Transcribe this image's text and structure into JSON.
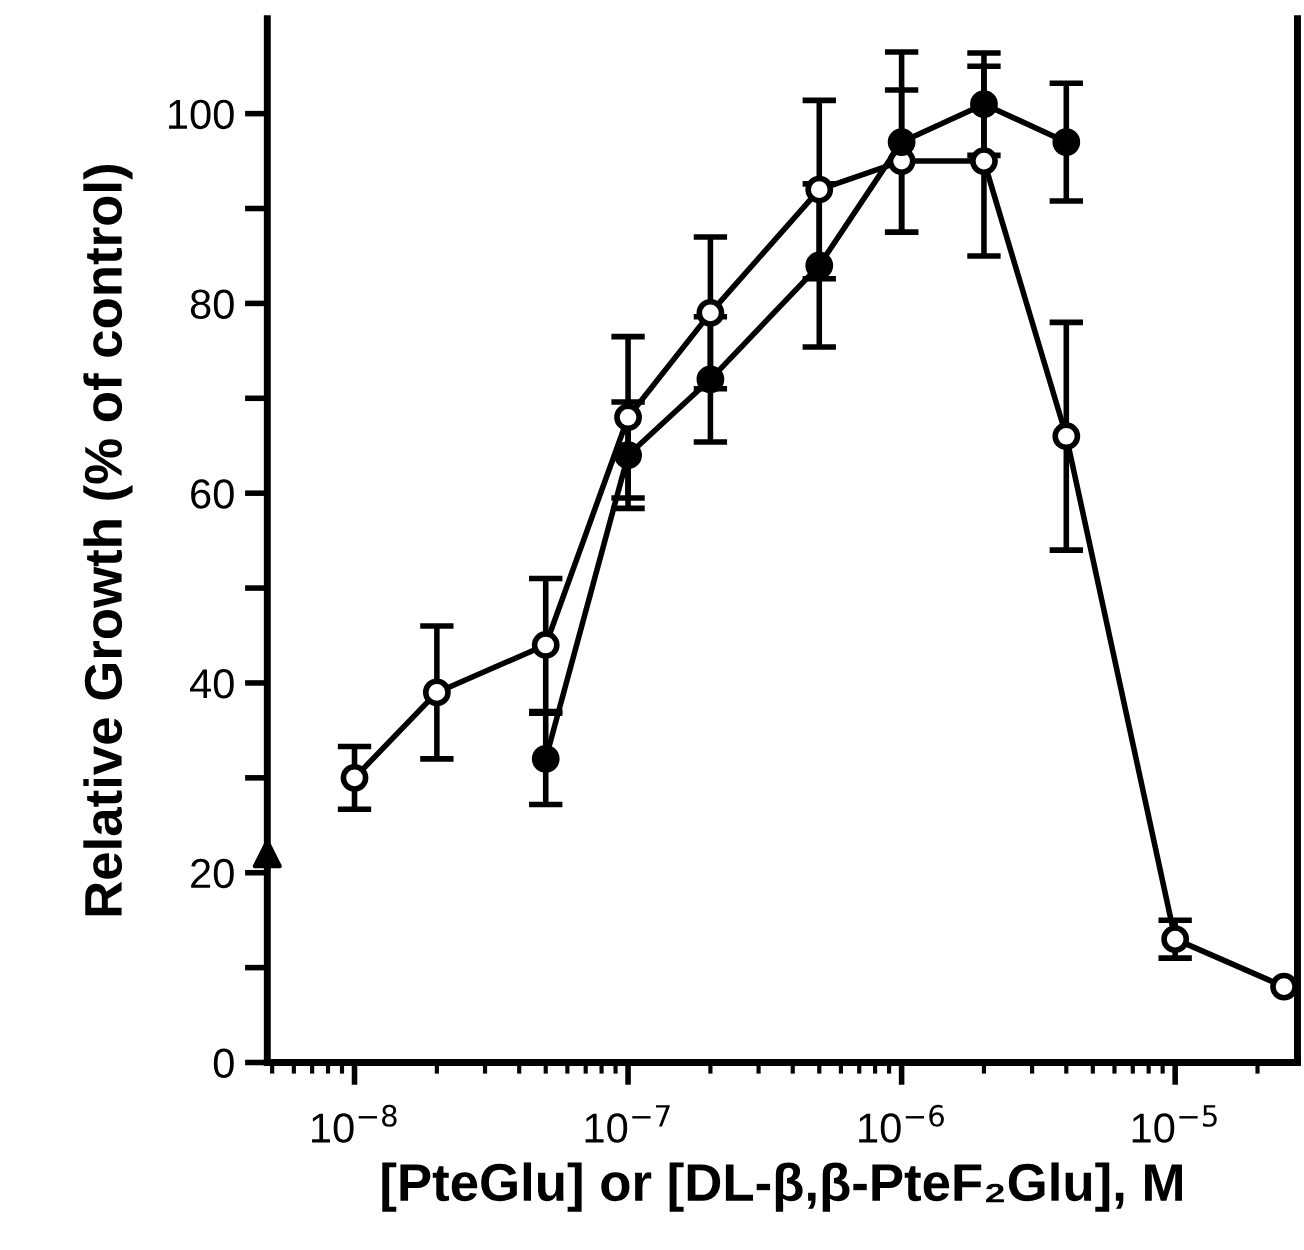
{
  "chart_data": {
    "type": "line",
    "xlabel": "[PteGlu] or [DL-β,β-PteF₂Glu], M",
    "ylabel": "Relative Growth (% of control)",
    "log": "x",
    "xlim": [
      4.8e-09,
      2.8e-05
    ],
    "ylim": [
      0,
      110
    ],
    "xticks": [
      {
        "value": 1e-08,
        "label": "10$^{−8}$"
      },
      {
        "value": 1e-07,
        "label": "10$^{−7}$"
      },
      {
        "value": 1e-06,
        "label": "10$^{−6}$"
      },
      {
        "value": 1e-05,
        "label": "10$^{−5}$"
      }
    ],
    "yticks": [
      0,
      {
        "value": 10,
        "label": null
      },
      20,
      {
        "value": 30,
        "label": null
      },
      40,
      {
        "value": 50,
        "label": null
      },
      60,
      {
        "value": 70,
        "label": null
      },
      80,
      {
        "value": 90,
        "label": null
      },
      100
    ],
    "grid": false,
    "legend": false,
    "line_style": "solid",
    "series": [
      {
        "color": "#000000",
        "marker": "circle",
        "x": [
          1e-08,
          2e-08,
          5e-08,
          1e-07,
          2e-07,
          5e-07,
          1e-06,
          2e-06,
          4e-06,
          1e-05,
          2.5e-05
        ],
        "values": [
          30,
          39,
          44,
          68,
          79,
          92,
          95,
          95,
          66,
          13,
          8
        ],
        "errors": [
          3.3,
          7,
          7,
          8.5,
          8,
          9.4,
          7.5,
          10,
          12,
          2,
          null
        ]
      },
      {
        "color": "#000000",
        "marker": "circle",
        "x": [
          5e-08,
          1e-07,
          2e-07,
          5e-07,
          1e-06,
          2e-06,
          4e-06
        ],
        "values": [
          32,
          64,
          72,
          84,
          97,
          101,
          97
        ],
        "errors": [
          4.8,
          5.6,
          6.6,
          8.6,
          9.5,
          5.4,
          6.2
        ]
      },
      {
        "type": "scatter",
        "color": "#000000",
        "marker": "triangle",
        "x": [
          4.8e-09
        ],
        "values": [
          22
        ]
      }
    ]
  }
}
